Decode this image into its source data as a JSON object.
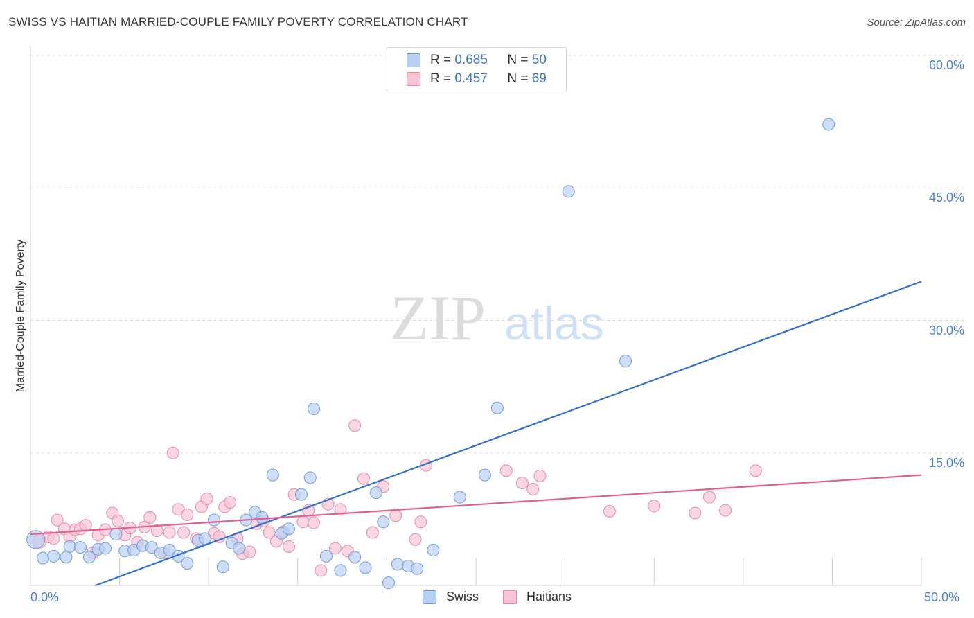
{
  "title": "SWISS VS HAITIAN MARRIED-COUPLE FAMILY POVERTY CORRELATION CHART",
  "source": "Source: ZipAtlas.com",
  "watermark": {
    "zip": "ZIP",
    "atlas": "atlas"
  },
  "legend_top": {
    "swiss": {
      "r_label": "R = ",
      "r_value": "0.685",
      "n_label": "N = ",
      "n_value": "50"
    },
    "haitians": {
      "r_label": "R = ",
      "r_value": "0.457",
      "n_label": "N = ",
      "n_value": "69"
    }
  },
  "legend_bottom": {
    "swiss": "Swiss",
    "haitians": "Haitians"
  },
  "colors": {
    "swiss_fill": "#b8d0f2",
    "swiss_stroke": "#6f9ad9",
    "swiss_line": "#2f6fd0",
    "haitians_fill": "#f7c4d4",
    "haitians_stroke": "#e58aa8",
    "haitians_line": "#e0608e",
    "grid": "#dddddd",
    "tick_text": "#4a7fd4"
  },
  "chart_data": {
    "type": "scatter",
    "title": "SWISS VS HAITIAN MARRIED-COUPLE FAMILY POVERTY CORRELATION CHART",
    "xlabel": "",
    "ylabel": "Married-Couple Family Poverty",
    "xlim": [
      0,
      50
    ],
    "ylim": [
      0,
      60
    ],
    "x_tick_labels": [
      "0.0%",
      "50.0%"
    ],
    "y_ticks": [
      15,
      30,
      45,
      60
    ],
    "y_tick_labels": [
      "15.0%",
      "30.0%",
      "45.0%",
      "60.0%"
    ],
    "grid": true,
    "series": [
      {
        "name": "Swiss",
        "R": 0.685,
        "N": 50,
        "trendline": {
          "x": [
            0,
            50
          ],
          "y": [
            -2.7,
            34.4
          ]
        },
        "points": [
          [
            0.3,
            5.2
          ],
          [
            0.7,
            3.1
          ],
          [
            1.3,
            3.3
          ],
          [
            2.0,
            3.2
          ],
          [
            2.2,
            4.4
          ],
          [
            2.8,
            4.3
          ],
          [
            3.3,
            3.2
          ],
          [
            3.8,
            4.1
          ],
          [
            4.2,
            4.2
          ],
          [
            4.8,
            5.8
          ],
          [
            5.3,
            3.9
          ],
          [
            5.8,
            4.0
          ],
          [
            6.3,
            4.5
          ],
          [
            6.8,
            4.3
          ],
          [
            7.3,
            3.7
          ],
          [
            7.8,
            4.0
          ],
          [
            8.3,
            3.3
          ],
          [
            8.8,
            2.5
          ],
          [
            9.4,
            5.1
          ],
          [
            9.8,
            5.3
          ],
          [
            10.3,
            7.4
          ],
          [
            10.8,
            2.1
          ],
          [
            11.3,
            4.8
          ],
          [
            11.7,
            4.2
          ],
          [
            12.1,
            7.4
          ],
          [
            12.6,
            8.3
          ],
          [
            13.0,
            7.7
          ],
          [
            13.6,
            12.5
          ],
          [
            14.1,
            5.9
          ],
          [
            14.5,
            6.4
          ],
          [
            15.2,
            10.3
          ],
          [
            15.7,
            12.2
          ],
          [
            15.9,
            20.0
          ],
          [
            16.6,
            3.3
          ],
          [
            17.4,
            1.7
          ],
          [
            18.2,
            3.2
          ],
          [
            18.8,
            2.0
          ],
          [
            19.4,
            10.5
          ],
          [
            19.8,
            7.2
          ],
          [
            20.1,
            0.3
          ],
          [
            20.6,
            2.4
          ],
          [
            21.2,
            2.2
          ],
          [
            21.7,
            1.9
          ],
          [
            22.6,
            4.0
          ],
          [
            24.1,
            10.0
          ],
          [
            25.5,
            12.5
          ],
          [
            26.2,
            20.1
          ],
          [
            30.2,
            44.6
          ],
          [
            33.4,
            25.4
          ],
          [
            44.8,
            52.2
          ]
        ]
      },
      {
        "name": "Haitians",
        "R": 0.457,
        "N": 69,
        "trendline": {
          "x": [
            0,
            50
          ],
          "y": [
            5.8,
            12.5
          ]
        },
        "points": [
          [
            0.5,
            5.0
          ],
          [
            1.0,
            5.5
          ],
          [
            1.3,
            5.3
          ],
          [
            1.5,
            7.4
          ],
          [
            1.9,
            6.4
          ],
          [
            2.2,
            5.5
          ],
          [
            2.5,
            6.3
          ],
          [
            2.8,
            6.4
          ],
          [
            3.1,
            6.8
          ],
          [
            3.5,
            3.7
          ],
          [
            3.8,
            5.7
          ],
          [
            4.2,
            6.3
          ],
          [
            4.6,
            8.2
          ],
          [
            4.9,
            7.3
          ],
          [
            5.3,
            5.7
          ],
          [
            5.6,
            6.5
          ],
          [
            6.0,
            4.9
          ],
          [
            6.4,
            6.6
          ],
          [
            6.7,
            7.7
          ],
          [
            7.1,
            6.2
          ],
          [
            7.5,
            3.7
          ],
          [
            7.8,
            6.0
          ],
          [
            8.0,
            15.0
          ],
          [
            8.3,
            8.6
          ],
          [
            8.6,
            6.0
          ],
          [
            8.8,
            8.0
          ],
          [
            9.3,
            5.3
          ],
          [
            9.6,
            8.9
          ],
          [
            9.9,
            9.8
          ],
          [
            10.3,
            5.9
          ],
          [
            10.6,
            5.5
          ],
          [
            10.9,
            8.9
          ],
          [
            11.2,
            9.4
          ],
          [
            11.6,
            5.3
          ],
          [
            11.9,
            3.6
          ],
          [
            12.3,
            3.8
          ],
          [
            12.7,
            7.0
          ],
          [
            13.1,
            7.3
          ],
          [
            13.4,
            6.0
          ],
          [
            13.8,
            5.0
          ],
          [
            14.2,
            6.1
          ],
          [
            14.5,
            4.4
          ],
          [
            14.8,
            10.3
          ],
          [
            15.3,
            7.2
          ],
          [
            15.6,
            8.5
          ],
          [
            15.9,
            7.1
          ],
          [
            16.3,
            1.7
          ],
          [
            16.7,
            9.2
          ],
          [
            17.1,
            4.2
          ],
          [
            17.4,
            8.6
          ],
          [
            17.8,
            3.9
          ],
          [
            18.2,
            18.1
          ],
          [
            18.7,
            12.1
          ],
          [
            19.2,
            6.0
          ],
          [
            19.8,
            11.2
          ],
          [
            20.5,
            7.9
          ],
          [
            21.6,
            5.2
          ],
          [
            21.9,
            7.2
          ],
          [
            22.2,
            13.6
          ],
          [
            26.7,
            13.0
          ],
          [
            27.6,
            11.6
          ],
          [
            28.2,
            10.9
          ],
          [
            28.6,
            12.4
          ],
          [
            32.5,
            8.4
          ],
          [
            35.0,
            9.0
          ],
          [
            37.3,
            8.2
          ],
          [
            38.1,
            10.0
          ],
          [
            39.0,
            8.5
          ],
          [
            40.7,
            13.0
          ]
        ]
      }
    ]
  }
}
